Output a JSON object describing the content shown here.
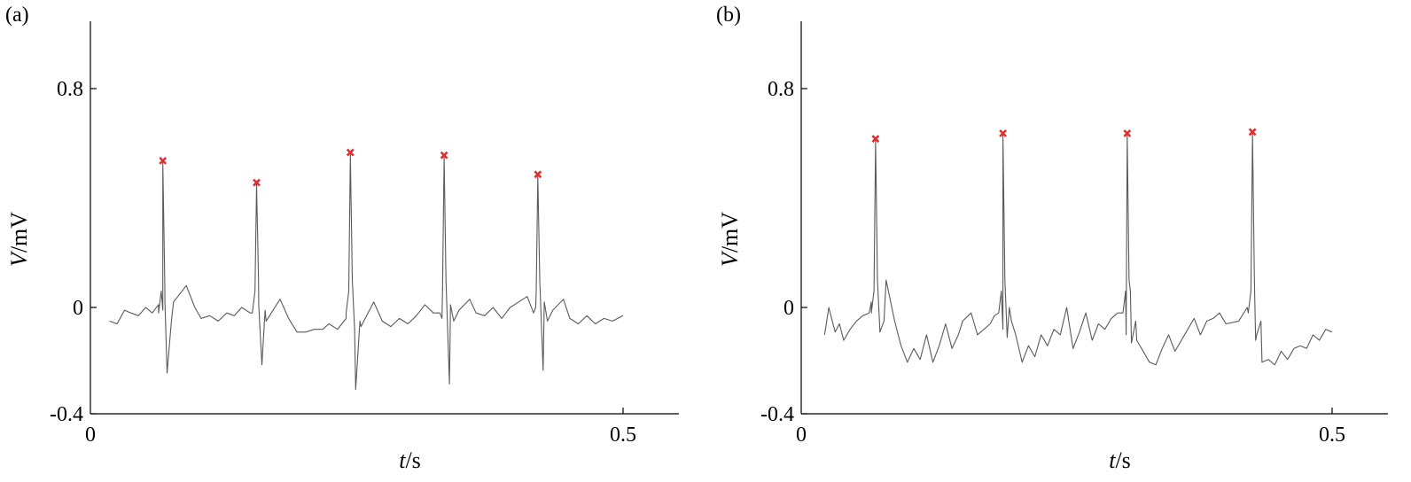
{
  "chart_data": [
    {
      "panel_label": "(a)",
      "type": "line",
      "xlabel_italic": "t",
      "xlabel_unit": "/s",
      "ylabel_italic": "V",
      "ylabel_unit": "/mV",
      "xlim": [
        0,
        0.5
      ],
      "ylim": [
        -0.4,
        1.0
      ],
      "xticks": [
        {
          "value": 0,
          "label": "0"
        },
        {
          "value": 0.5,
          "label": "0.5"
        }
      ],
      "yticks": [
        {
          "value": -0.4,
          "label": "-0.4"
        },
        {
          "value": 0,
          "label": "0"
        },
        {
          "value": 0.8,
          "label": "0.8"
        }
      ],
      "grid": false,
      "signal_color": "#5a5a5a",
      "marker_color": "#e03030",
      "x_start": 0.018,
      "x_end": 0.5,
      "baseline_points": [
        [
          0.018,
          -0.05
        ],
        [
          0.025,
          -0.06
        ],
        [
          0.032,
          -0.01
        ],
        [
          0.038,
          -0.02
        ],
        [
          0.045,
          -0.03
        ],
        [
          0.052,
          0.0
        ],
        [
          0.058,
          -0.02
        ],
        [
          0.064,
          0.01
        ],
        [
          0.068,
          -0.01
        ],
        [
          0.07,
          0.02
        ],
        [
          0.078,
          0.02
        ],
        [
          0.09,
          0.08
        ],
        [
          0.098,
          0.0
        ],
        [
          0.104,
          -0.04
        ],
        [
          0.112,
          -0.03
        ],
        [
          0.12,
          -0.05
        ],
        [
          0.128,
          -0.02
        ],
        [
          0.135,
          -0.03
        ],
        [
          0.142,
          0.0
        ],
        [
          0.15,
          -0.02
        ],
        [
          0.158,
          0.01
        ],
        [
          0.164,
          -0.01
        ],
        [
          0.178,
          0.03
        ],
        [
          0.186,
          -0.04
        ],
        [
          0.194,
          -0.09
        ],
        [
          0.202,
          -0.09
        ],
        [
          0.21,
          -0.08
        ],
        [
          0.218,
          -0.08
        ],
        [
          0.224,
          -0.06
        ],
        [
          0.232,
          -0.08
        ],
        [
          0.24,
          -0.04
        ],
        [
          0.248,
          -0.08
        ],
        [
          0.254,
          -0.07
        ],
        [
          0.266,
          0.02
        ],
        [
          0.274,
          -0.05
        ],
        [
          0.282,
          -0.07
        ],
        [
          0.29,
          -0.04
        ],
        [
          0.298,
          -0.06
        ],
        [
          0.306,
          -0.03
        ],
        [
          0.314,
          0.01
        ],
        [
          0.322,
          -0.02
        ],
        [
          0.33,
          -0.04
        ],
        [
          0.338,
          0.01
        ],
        [
          0.346,
          -0.01
        ],
        [
          0.356,
          0.03
        ],
        [
          0.362,
          -0.02
        ],
        [
          0.37,
          -0.03
        ],
        [
          0.378,
          0.0
        ],
        [
          0.386,
          -0.04
        ],
        [
          0.394,
          0.0
        ],
        [
          0.402,
          0.02
        ],
        [
          0.41,
          0.04
        ],
        [
          0.418,
          0.0
        ],
        [
          0.426,
          0.02
        ],
        [
          0.434,
          -0.01
        ],
        [
          0.444,
          0.03
        ],
        [
          0.45,
          -0.04
        ],
        [
          0.458,
          -0.06
        ],
        [
          0.466,
          -0.03
        ],
        [
          0.474,
          -0.06
        ],
        [
          0.482,
          -0.04
        ],
        [
          0.49,
          -0.05
        ],
        [
          0.5,
          -0.03
        ]
      ],
      "peaks": [
        {
          "t": 0.068,
          "v": 0.53
        },
        {
          "t": 0.156,
          "v": 0.45
        },
        {
          "t": 0.244,
          "v": 0.56
        },
        {
          "t": 0.332,
          "v": 0.55
        },
        {
          "t": 0.42,
          "v": 0.48
        }
      ],
      "troughs": [
        {
          "t": 0.072,
          "v": -0.24
        },
        {
          "t": 0.161,
          "v": -0.21
        },
        {
          "t": 0.249,
          "v": -0.3
        },
        {
          "t": 0.337,
          "v": -0.28
        },
        {
          "t": 0.425,
          "v": -0.23
        }
      ]
    },
    {
      "panel_label": "(b)",
      "type": "line",
      "xlabel_italic": "t",
      "xlabel_unit": "/s",
      "ylabel_italic": "V",
      "ylabel_unit": "/mV",
      "xlim": [
        0,
        0.5
      ],
      "ylim": [
        -0.4,
        1.0
      ],
      "xticks": [
        {
          "value": 0,
          "label": "0"
        },
        {
          "value": 0.5,
          "label": "0.5"
        }
      ],
      "yticks": [
        {
          "value": -0.4,
          "label": "-0.4"
        },
        {
          "value": 0,
          "label": "0"
        },
        {
          "value": 0.8,
          "label": "0.8"
        }
      ],
      "grid": false,
      "signal_color": "#5a5a5a",
      "marker_color": "#e03030",
      "x_start": 0.022,
      "x_end": 0.5,
      "baseline_points": [
        [
          0.022,
          -0.1
        ],
        [
          0.026,
          0.0
        ],
        [
          0.032,
          -0.09
        ],
        [
          0.036,
          -0.06
        ],
        [
          0.04,
          -0.12
        ],
        [
          0.046,
          -0.08
        ],
        [
          0.052,
          -0.05
        ],
        [
          0.058,
          -0.03
        ],
        [
          0.064,
          -0.02
        ],
        [
          0.066,
          0.02
        ],
        [
          0.074,
          -0.08
        ],
        [
          0.08,
          0.1
        ],
        [
          0.088,
          -0.05
        ],
        [
          0.094,
          -0.14
        ],
        [
          0.1,
          -0.2
        ],
        [
          0.106,
          -0.15
        ],
        [
          0.112,
          -0.19
        ],
        [
          0.118,
          -0.1
        ],
        [
          0.124,
          -0.2
        ],
        [
          0.13,
          -0.14
        ],
        [
          0.136,
          -0.06
        ],
        [
          0.142,
          -0.15
        ],
        [
          0.148,
          -0.1
        ],
        [
          0.152,
          -0.05
        ],
        [
          0.16,
          -0.02
        ],
        [
          0.166,
          -0.1
        ],
        [
          0.172,
          -0.08
        ],
        [
          0.178,
          -0.06
        ],
        [
          0.182,
          -0.03
        ],
        [
          0.19,
          -0.08
        ],
        [
          0.196,
          0.0
        ],
        [
          0.202,
          -0.1
        ],
        [
          0.208,
          -0.2
        ],
        [
          0.214,
          -0.14
        ],
        [
          0.22,
          -0.18
        ],
        [
          0.226,
          -0.1
        ],
        [
          0.232,
          -0.14
        ],
        [
          0.238,
          -0.08
        ],
        [
          0.244,
          -0.1
        ],
        [
          0.25,
          0.0
        ],
        [
          0.256,
          -0.15
        ],
        [
          0.262,
          -0.09
        ],
        [
          0.268,
          -0.02
        ],
        [
          0.274,
          -0.12
        ],
        [
          0.28,
          -0.06
        ],
        [
          0.286,
          -0.08
        ],
        [
          0.292,
          -0.04
        ],
        [
          0.298,
          -0.02
        ],
        [
          0.306,
          -0.1
        ],
        [
          0.31,
          0.06
        ],
        [
          0.316,
          -0.12
        ],
        [
          0.322,
          -0.16
        ],
        [
          0.328,
          -0.2
        ],
        [
          0.334,
          -0.21
        ],
        [
          0.34,
          -0.15
        ],
        [
          0.346,
          -0.1
        ],
        [
          0.352,
          -0.16
        ],
        [
          0.358,
          -0.12
        ],
        [
          0.364,
          -0.08
        ],
        [
          0.37,
          -0.04
        ],
        [
          0.376,
          -0.1
        ],
        [
          0.382,
          -0.05
        ],
        [
          0.388,
          -0.04
        ],
        [
          0.394,
          -0.02
        ],
        [
          0.4,
          -0.06
        ],
        [
          0.412,
          -0.05
        ],
        [
          0.42,
          0.0
        ],
        [
          0.428,
          -0.12
        ],
        [
          0.434,
          -0.2
        ],
        [
          0.44,
          -0.19
        ],
        [
          0.446,
          -0.21
        ],
        [
          0.452,
          -0.16
        ],
        [
          0.458,
          -0.19
        ],
        [
          0.464,
          -0.15
        ],
        [
          0.47,
          -0.14
        ],
        [
          0.476,
          -0.15
        ],
        [
          0.482,
          -0.1
        ],
        [
          0.488,
          -0.12
        ],
        [
          0.494,
          -0.08
        ],
        [
          0.5,
          -0.09
        ]
      ],
      "peaks": [
        {
          "t": 0.07,
          "v": 0.61
        },
        {
          "t": 0.19,
          "v": 0.63
        },
        {
          "t": 0.307,
          "v": 0.63
        },
        {
          "t": 0.425,
          "v": 0.635
        }
      ],
      "troughs": [
        {
          "t": 0.074,
          "v": -0.09
        },
        {
          "t": 0.194,
          "v": -0.11
        },
        {
          "t": 0.311,
          "v": -0.13
        },
        {
          "t": 0.429,
          "v": -0.1
        }
      ]
    }
  ]
}
